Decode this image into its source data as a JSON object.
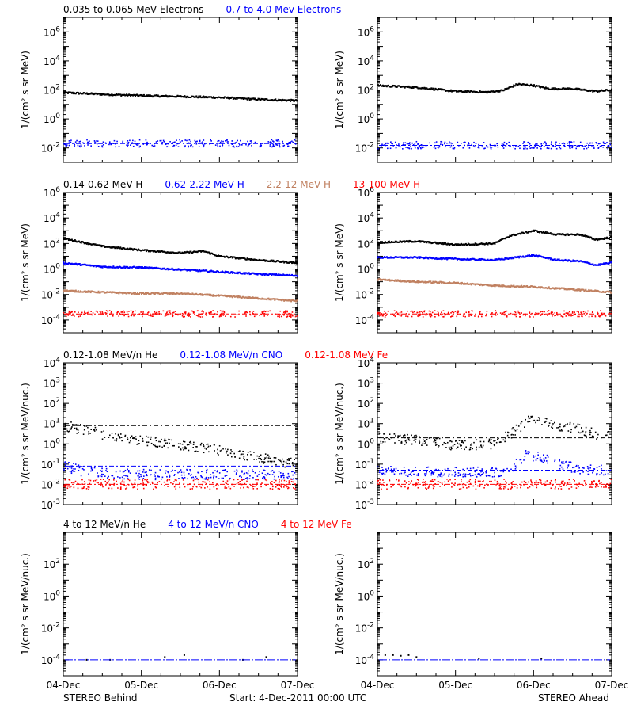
{
  "colors": {
    "black": "#000000",
    "blue": "#0000ff",
    "tan": "#c08060",
    "red": "#ff0000"
  },
  "footer": {
    "left": "STEREO Behind",
    "center": "Start:  4-Dec-2011 00:00 UTC",
    "right": "STEREO Ahead"
  },
  "x_axis": {
    "ticks": [
      0,
      1,
      2,
      3
    ],
    "tick_labels": [
      "04-Dec",
      "05-Dec",
      "06-Dec",
      "07-Dec"
    ],
    "range": [
      0,
      3
    ]
  },
  "rows": [
    {
      "legend": [
        {
          "text": "0.035 to 0.065 MeV Electrons",
          "color": "black"
        },
        {
          "text": "0.7 to 4.0 Mev Electrons",
          "color": "blue"
        }
      ],
      "ylabel": "1/(cm² s sr MeV)",
      "ylim": [
        0.001,
        10000000
      ],
      "yticks": [
        {
          "v": 1000000,
          "base": "10",
          "exp": "6"
        },
        {
          "v": 10000,
          "base": "10",
          "exp": "4"
        },
        {
          "v": 100,
          "base": "10",
          "exp": "2"
        },
        {
          "v": 1,
          "base": "10",
          "exp": "0"
        },
        {
          "v": 0.01,
          "base": "10",
          "exp": "-2"
        }
      ]
    },
    {
      "legend": [
        {
          "text": "0.14-0.62 MeV H",
          "color": "black"
        },
        {
          "text": "0.62-2.22 MeV H",
          "color": "blue"
        },
        {
          "text": "2.2-12 MeV H",
          "color": "tan"
        },
        {
          "text": "13-100 MeV H",
          "color": "red"
        }
      ],
      "ylabel": "1/(cm² s sr MeV)",
      "ylim": [
        1e-05,
        1000000
      ],
      "yticks": [
        {
          "v": 1000000,
          "base": "10",
          "exp": "6"
        },
        {
          "v": 10000,
          "base": "10",
          "exp": "4"
        },
        {
          "v": 100,
          "base": "10",
          "exp": "2"
        },
        {
          "v": 1,
          "base": "10",
          "exp": "0"
        },
        {
          "v": 0.01,
          "base": "10",
          "exp": "-2"
        },
        {
          "v": 0.0001,
          "base": "10",
          "exp": "-4"
        }
      ]
    },
    {
      "legend": [
        {
          "text": "0.12-1.08 MeV/n He",
          "color": "black"
        },
        {
          "text": "0.12-1.08 MeV/n CNO",
          "color": "blue"
        },
        {
          "text": "0.12-1.08 MeV Fe",
          "color": "red"
        }
      ],
      "ylabel": "1/(cm² s sr MeV/nuc.)",
      "ylim": [
        0.001,
        10000
      ],
      "yticks": [
        {
          "v": 10000,
          "base": "10",
          "exp": "4"
        },
        {
          "v": 1000,
          "base": "10",
          "exp": "3"
        },
        {
          "v": 100,
          "base": "10",
          "exp": "2"
        },
        {
          "v": 10,
          "base": "10",
          "exp": "1"
        },
        {
          "v": 1,
          "base": "10",
          "exp": "0"
        },
        {
          "v": 0.1,
          "base": "10",
          "exp": "-1"
        },
        {
          "v": 0.01,
          "base": "10",
          "exp": "-2"
        },
        {
          "v": 0.001,
          "base": "10",
          "exp": "-3"
        }
      ]
    },
    {
      "legend": [
        {
          "text": "4 to 12 MeV/n He",
          "color": "black"
        },
        {
          "text": "4 to 12 MeV/n CNO",
          "color": "blue"
        },
        {
          "text": "4 to 12 MeV Fe",
          "color": "red"
        }
      ],
      "ylabel": "1/(cm² s sr MeV/nuc.)",
      "ylim": [
        1e-05,
        10000
      ],
      "yticks": [
        {
          "v": 100,
          "base": "10",
          "exp": "2"
        },
        {
          "v": 1,
          "base": "10",
          "exp": "0"
        },
        {
          "v": 0.01,
          "base": "10",
          "exp": "-2"
        },
        {
          "v": 0.0001,
          "base": "10",
          "exp": "-4"
        }
      ]
    }
  ],
  "chart_data": [
    {
      "type": "scatter",
      "spacecraft": "STEREO Behind",
      "row": 0,
      "col": 0,
      "x_units": "days since 4-Dec-2011 00:00 UTC",
      "log_y": true,
      "series": [
        {
          "name": "0.035 to 0.065 MeV Electrons",
          "color": "black",
          "style": "line",
          "x": [
            0,
            0.5,
            1,
            1.5,
            2,
            2.5,
            3
          ],
          "y": [
            65,
            50,
            40,
            35,
            30,
            22,
            18
          ]
        },
        {
          "name": "0.7 to 4.0 Mev Electrons",
          "color": "blue",
          "style": "noise",
          "x": [
            0,
            1,
            2,
            3
          ],
          "y": [
            0.02,
            0.02,
            0.02,
            0.02
          ]
        }
      ]
    },
    {
      "type": "scatter",
      "spacecraft": "STEREO Ahead",
      "row": 0,
      "col": 1,
      "x_units": "days since 4-Dec-2011 00:00 UTC",
      "log_y": true,
      "series": [
        {
          "name": "0.035 to 0.065 MeV Electrons",
          "color": "black",
          "style": "line",
          "x": [
            0,
            0.5,
            1,
            1.4,
            1.6,
            1.8,
            2,
            2.2,
            2.5,
            2.8,
            3
          ],
          "y": [
            200,
            150,
            80,
            70,
            90,
            250,
            200,
            120,
            120,
            80,
            100
          ]
        },
        {
          "name": "0.7 to 4.0 Mev Electrons",
          "color": "blue",
          "style": "noise",
          "x": [
            0,
            1,
            2,
            3
          ],
          "y": [
            0.015,
            0.015,
            0.015,
            0.015
          ]
        }
      ]
    },
    {
      "type": "scatter",
      "spacecraft": "STEREO Behind",
      "row": 1,
      "col": 0,
      "x_units": "days since 4-Dec-2011 00:00 UTC",
      "log_y": true,
      "series": [
        {
          "name": "0.14-0.62 MeV H",
          "color": "black",
          "style": "line",
          "x": [
            0,
            0.5,
            1,
            1.5,
            1.8,
            2,
            2.5,
            3
          ],
          "y": [
            250,
            60,
            30,
            18,
            25,
            10,
            5,
            3
          ]
        },
        {
          "name": "0.62-2.22 MeV H",
          "color": "blue",
          "style": "line",
          "x": [
            0,
            0.5,
            1,
            1.5,
            2,
            2.5,
            3
          ],
          "y": [
            3,
            1.5,
            1.3,
            0.9,
            0.6,
            0.4,
            0.3
          ]
        },
        {
          "name": "2.2-12 MeV H",
          "color": "tan",
          "style": "line",
          "x": [
            0,
            0.5,
            1,
            1.5,
            2,
            2.5,
            3
          ],
          "y": [
            0.02,
            0.015,
            0.012,
            0.012,
            0.008,
            0.005,
            0.003
          ]
        },
        {
          "name": "13-100 MeV H",
          "color": "red",
          "style": "noise",
          "x": [
            0,
            1,
            2,
            3
          ],
          "y": [
            0.0003,
            0.0003,
            0.0003,
            0.0003
          ]
        }
      ]
    },
    {
      "type": "scatter",
      "spacecraft": "STEREO Ahead",
      "row": 1,
      "col": 1,
      "x_units": "days since 4-Dec-2011 00:00 UTC",
      "log_y": true,
      "series": [
        {
          "name": "0.14-0.62 MeV H",
          "color": "black",
          "style": "line",
          "x": [
            0,
            0.5,
            1,
            1.5,
            1.7,
            2,
            2.3,
            2.6,
            2.8,
            3
          ],
          "y": [
            120,
            150,
            80,
            100,
            400,
            1000,
            500,
            500,
            200,
            300
          ]
        },
        {
          "name": "0.62-2.22 MeV H",
          "color": "blue",
          "style": "line",
          "x": [
            0,
            0.5,
            1,
            1.5,
            1.7,
            2,
            2.3,
            2.6,
            2.8,
            3
          ],
          "y": [
            8,
            8,
            6,
            5,
            7,
            12,
            5,
            4,
            2,
            3
          ]
        },
        {
          "name": "2.2-12 MeV H",
          "color": "tan",
          "style": "line",
          "x": [
            0,
            0.5,
            1,
            1.5,
            2,
            2.5,
            3
          ],
          "y": [
            0.15,
            0.1,
            0.08,
            0.05,
            0.04,
            0.025,
            0.015
          ]
        },
        {
          "name": "13-100 MeV H",
          "color": "red",
          "style": "noise",
          "x": [
            0,
            1,
            2,
            3
          ],
          "y": [
            0.0003,
            0.0003,
            0.0003,
            0.0003
          ]
        }
      ]
    },
    {
      "type": "scatter",
      "spacecraft": "STEREO Behind",
      "row": 2,
      "col": 0,
      "x_units": "days since 4-Dec-2011 00:00 UTC",
      "log_y": true,
      "series": [
        {
          "name": "0.12-1.08 MeV/n He",
          "color": "black",
          "style": "noise",
          "x": [
            0,
            0.5,
            1,
            1.5,
            2,
            2.5,
            3
          ],
          "y": [
            8,
            3,
            1.5,
            0.8,
            0.5,
            0.2,
            0.1
          ]
        },
        {
          "name": "0.12-1.08 MeV/n CNO",
          "color": "blue",
          "style": "noise",
          "x": [
            0,
            0.3,
            1,
            2,
            3
          ],
          "y": [
            0.08,
            0.04,
            0.03,
            0.03,
            0.03
          ]
        },
        {
          "name": "0.12-1.08 MeV Fe",
          "color": "red",
          "style": "noise",
          "x": [
            0,
            1,
            2,
            3
          ],
          "y": [
            0.01,
            0.01,
            0.01,
            0.01
          ]
        }
      ]
    },
    {
      "type": "scatter",
      "spacecraft": "STEREO Ahead",
      "row": 2,
      "col": 1,
      "x_units": "days since 4-Dec-2011 00:00 UTC",
      "log_y": true,
      "series": [
        {
          "name": "0.12-1.08 MeV/n He",
          "color": "black",
          "style": "noise",
          "x": [
            0,
            0.5,
            1,
            1.5,
            1.7,
            2,
            2.3,
            2.6,
            2.8,
            3
          ],
          "y": [
            2,
            1.5,
            0.8,
            1,
            3,
            20,
            8,
            5,
            3,
            3
          ]
        },
        {
          "name": "0.12-1.08 MeV/n CNO",
          "color": "blue",
          "style": "noise",
          "x": [
            0,
            0.5,
            1,
            1.5,
            1.7,
            1.9,
            2.1,
            2.4,
            2.7,
            3
          ],
          "y": [
            0.05,
            0.04,
            0.04,
            0.04,
            0.05,
            0.3,
            0.2,
            0.08,
            0.05,
            0.05
          ]
        },
        {
          "name": "0.12-1.08 MeV Fe",
          "color": "red",
          "style": "noise",
          "x": [
            0,
            1,
            2,
            3
          ],
          "y": [
            0.01,
            0.01,
            0.01,
            0.01
          ]
        }
      ]
    },
    {
      "type": "scatter",
      "spacecraft": "STEREO Behind",
      "row": 3,
      "col": 0,
      "x_units": "days since 4-Dec-2011 00:00 UTC",
      "log_y": true,
      "series": [
        {
          "name": "4 to 12 MeV/n He",
          "color": "black",
          "style": "sparse",
          "x": [
            0.3,
            0.6,
            1.3,
            1.55,
            2.3,
            2.6
          ],
          "y": [
            0.0001,
            0.0001,
            0.00015,
            0.0002,
            0.0001,
            0.00015
          ]
        },
        {
          "name": "4 to 12 MeV/n CNO",
          "color": "blue",
          "style": "baseline",
          "x": [
            0,
            3
          ],
          "y": [
            0.0001,
            0.0001
          ]
        }
      ]
    },
    {
      "type": "scatter",
      "spacecraft": "STEREO Ahead",
      "row": 3,
      "col": 1,
      "x_units": "days since 4-Dec-2011 00:00 UTC",
      "log_y": true,
      "series": [
        {
          "name": "4 to 12 MeV/n He",
          "color": "black",
          "style": "sparse",
          "x": [
            0.1,
            0.2,
            0.3,
            0.4,
            0.5,
            1.3,
            2.1
          ],
          "y": [
            0.0002,
            0.0002,
            0.00018,
            0.0002,
            0.00015,
            0.00012,
            0.00012
          ]
        },
        {
          "name": "4 to 12 MeV/n CNO",
          "color": "blue",
          "style": "baseline",
          "x": [
            0,
            3
          ],
          "y": [
            0.0001,
            0.0001
          ]
        }
      ]
    }
  ]
}
